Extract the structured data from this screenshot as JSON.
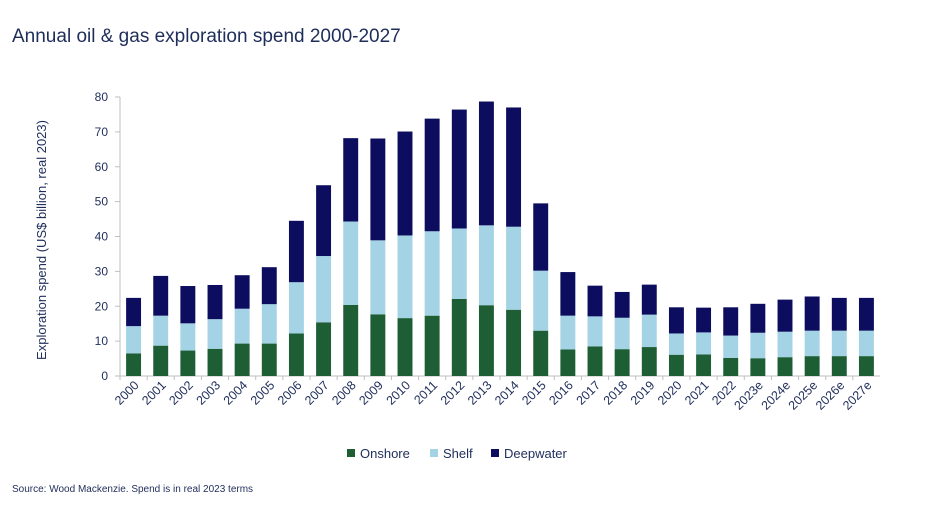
{
  "title": "Annual oil & gas exploration spend 2000-2027",
  "source": "Source: Wood Mackenzie. Spend  is in real 2023 terms",
  "colors": {
    "onshore": "#1e5e35",
    "shelf": "#a3d3e4",
    "deepwater": "#0c0d5e",
    "text": "#1f2d5a",
    "axis": "#bfbfbf"
  },
  "chart_data": {
    "type": "bar",
    "stacked": true,
    "ylabel": "Exploration spend (US$ billion, real 2023)",
    "ylim": [
      0,
      80
    ],
    "yticks": [
      0,
      10,
      20,
      30,
      40,
      50,
      60,
      70,
      80
    ],
    "grid": false,
    "legend_position": "bottom",
    "categories": [
      "2000",
      "2001",
      "2002",
      "2003",
      "2004",
      "2005",
      "2006",
      "2007",
      "2008",
      "2009",
      "2010",
      "2011",
      "2012",
      "2013",
      "2014",
      "2015",
      "2016",
      "2017",
      "2018",
      "2019",
      "2020",
      "2021",
      "2022",
      "2023e",
      "2024e",
      "2025e",
      "2026e",
      "2027e"
    ],
    "series": [
      {
        "name": "Onshore",
        "key": "onshore",
        "values": [
          6.5,
          8.7,
          7.3,
          7.8,
          9.3,
          9.3,
          12.2,
          15.4,
          20.4,
          17.7,
          16.6,
          17.3,
          22.1,
          20.3,
          19.0,
          13.0,
          7.6,
          8.5,
          7.7,
          8.3,
          6.1,
          6.2,
          5.2,
          5.1,
          5.4,
          5.7,
          5.7,
          5.7
        ]
      },
      {
        "name": "Shelf",
        "key": "shelf",
        "values": [
          7.8,
          8.6,
          7.8,
          8.5,
          10.0,
          11.3,
          14.7,
          19.0,
          23.9,
          21.2,
          23.7,
          24.2,
          20.2,
          22.9,
          23.8,
          17.2,
          9.7,
          8.6,
          9.0,
          9.3,
          6.1,
          6.3,
          6.4,
          7.3,
          7.3,
          7.3,
          7.3,
          7.3
        ]
      },
      {
        "name": "Deepwater",
        "key": "deepwater",
        "values": [
          8.1,
          11.4,
          10.7,
          9.8,
          9.6,
          10.6,
          17.6,
          20.3,
          23.9,
          29.2,
          29.8,
          32.3,
          34.1,
          35.5,
          34.2,
          19.3,
          12.5,
          8.8,
          7.4,
          8.6,
          7.5,
          7.1,
          8.1,
          8.3,
          9.2,
          9.8,
          9.4,
          9.4
        ]
      }
    ]
  }
}
